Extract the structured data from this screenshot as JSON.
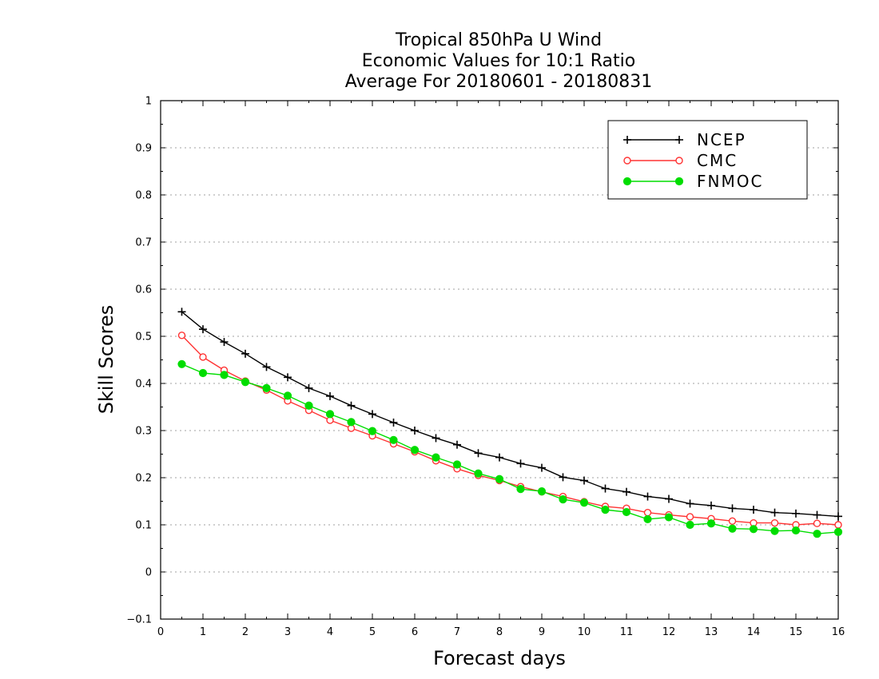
{
  "chart_data": {
    "type": "line",
    "title": [
      "Tropical 850hPa U Wind",
      "Economic Values for 10:1 Ratio",
      "Average For 20180601 - 20180831"
    ],
    "xlabel": "Forecast days",
    "ylabel": "Skill Scores",
    "xlim": [
      0,
      16
    ],
    "ylim": [
      -0.1,
      1
    ],
    "xticks": [
      "0",
      "1",
      "2",
      "3",
      "4",
      "5",
      "6",
      "7",
      "8",
      "9",
      "10",
      "11",
      "12",
      "13",
      "14",
      "15",
      "16"
    ],
    "yticks": [
      "−0.1",
      "0",
      "0.1",
      "0.2",
      "0.3",
      "0.4",
      "0.5",
      "0.6",
      "0.7",
      "0.8",
      "0.9",
      "1"
    ],
    "grid": true,
    "legend_position": "top-right",
    "x": [
      0.5,
      1,
      1.5,
      2,
      2.5,
      3,
      3.5,
      4,
      4.5,
      5,
      5.5,
      6,
      6.5,
      7,
      7.5,
      8,
      8.5,
      9,
      9.5,
      10,
      10.5,
      11,
      11.5,
      12,
      12.5,
      13,
      13.5,
      14,
      14.5,
      15,
      15.5,
      16
    ],
    "series": [
      {
        "name": "NCEP",
        "color": "#000000",
        "marker": "plus",
        "values": [
          0.552,
          0.515,
          0.488,
          0.463,
          0.435,
          0.413,
          0.39,
          0.373,
          0.353,
          0.335,
          0.317,
          0.3,
          0.284,
          0.27,
          0.252,
          0.243,
          0.23,
          0.221,
          0.201,
          0.194,
          0.177,
          0.17,
          0.16,
          0.155,
          0.145,
          0.141,
          0.135,
          0.132,
          0.126,
          0.124,
          0.121,
          0.118
        ]
      },
      {
        "name": "CMC",
        "color": "#ff3333",
        "marker": "open-circle",
        "values": [
          0.502,
          0.456,
          0.428,
          0.405,
          0.386,
          0.363,
          0.343,
          0.322,
          0.305,
          0.289,
          0.272,
          0.255,
          0.236,
          0.219,
          0.205,
          0.194,
          0.181,
          0.17,
          0.16,
          0.149,
          0.139,
          0.135,
          0.126,
          0.121,
          0.117,
          0.113,
          0.108,
          0.104,
          0.104,
          0.1,
          0.103,
          0.1
        ]
      },
      {
        "name": "FNMOC",
        "color": "#00dd00",
        "marker": "filled-circle",
        "values": [
          0.441,
          0.422,
          0.418,
          0.403,
          0.39,
          0.374,
          0.353,
          0.335,
          0.318,
          0.299,
          0.28,
          0.259,
          0.243,
          0.228,
          0.209,
          0.197,
          0.176,
          0.171,
          0.154,
          0.147,
          0.132,
          0.127,
          0.112,
          0.116,
          0.1,
          0.103,
          0.092,
          0.091,
          0.087,
          0.088,
          0.081,
          0.085
        ]
      }
    ]
  }
}
